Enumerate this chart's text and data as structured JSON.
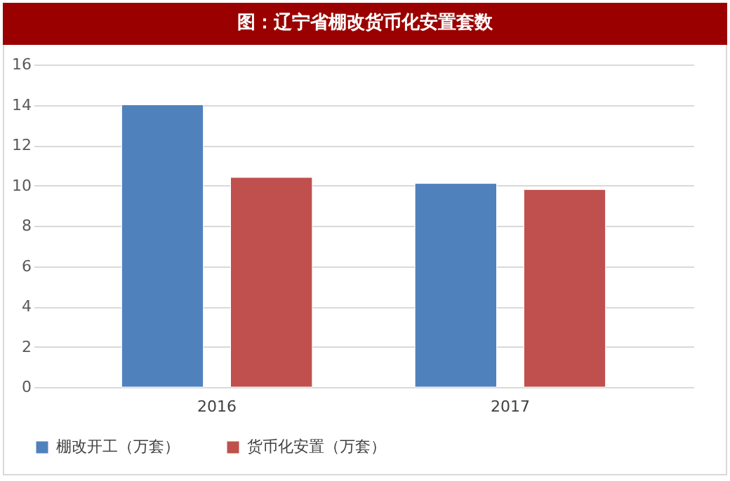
{
  "chart_data": {
    "type": "bar",
    "title": "图：辽宁省棚改货币化安置套数",
    "categories": [
      "2016",
      "2017"
    ],
    "series": [
      {
        "name": "棚改开工（万套）",
        "color": "#4f81bd",
        "values": [
          14,
          10.1
        ]
      },
      {
        "name": "货币化安置（万套）",
        "color": "#c0504d",
        "values": [
          10.4,
          9.8
        ]
      }
    ],
    "ylim": [
      0,
      16
    ],
    "yticks": [
      0,
      2,
      4,
      6,
      8,
      10,
      12,
      14,
      16
    ],
    "grid": "y",
    "legend": "bottom"
  }
}
